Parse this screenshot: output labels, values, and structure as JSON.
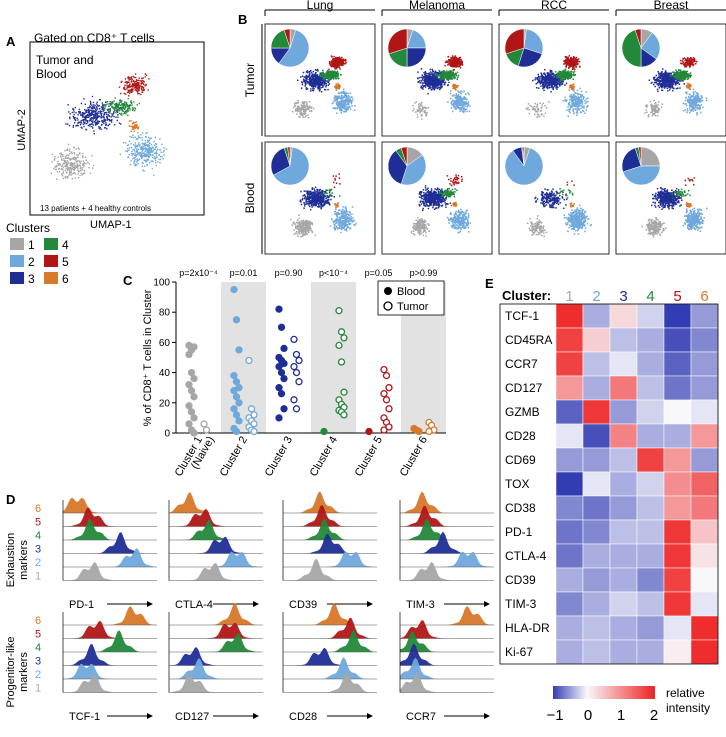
{
  "colors": {
    "c1": "#a6a6a6",
    "c2": "#6fa8dc",
    "c3": "#1f2e96",
    "c4": "#22883a",
    "c5": "#b01616",
    "c6": "#d7782a"
  },
  "panelA": {
    "letter": "A",
    "title": "Gated on CD8⁺ T cells",
    "subtitle_line1": "Tumor and",
    "subtitle_line2": "Blood",
    "footnote": "13 patients + 4 healthy controls",
    "xlabel": "UMAP-1",
    "ylabel": "UMAP-2",
    "clusters_title": "Clusters",
    "cluster_labels": [
      "1",
      "2",
      "3",
      "4",
      "5",
      "6"
    ]
  },
  "panelB": {
    "letter": "B",
    "columns": [
      "Lung",
      "Melanoma",
      "RCC",
      "Breast"
    ],
    "rows": [
      "Tumor",
      "Blood"
    ]
  },
  "chart_data": [
    {
      "type": "scatter",
      "panel": "C",
      "ylabel": "% of CD8⁺ T cells in Cluster",
      "ylim": [
        0,
        100
      ],
      "yticks": [
        0,
        20,
        40,
        60,
        80,
        100
      ],
      "categories": [
        "Cluster 1 (Naive)",
        "Cluster 2",
        "Cluster 3",
        "Cluster 4",
        "Cluster 5",
        "Cluster 6"
      ],
      "cat_line1": [
        "Cluster 1",
        "Cluster 2",
        "Cluster 3",
        "Cluster 4",
        "Cluster 5",
        "Cluster 6"
      ],
      "cat_line2": [
        "(Naive)",
        "",
        "",
        "",
        "",
        ""
      ],
      "pvalues": [
        "p=2x10⁻⁴",
        "p=0.01",
        "p=0.90",
        "p<10⁻⁴",
        "p=0.05",
        "p>0.99"
      ],
      "legend": [
        "Blood",
        "Tumor"
      ],
      "series": [
        {
          "name": "Blood",
          "filled": true,
          "values": [
            [
              58,
              55,
              57,
              52,
              40,
              36,
              32,
              28,
              24,
              18,
              14,
              10,
              6,
              2,
              0
            ],
            [
              95,
              75,
              55,
              38,
              34,
              30,
              28,
              24,
              20,
              16,
              12,
              8,
              3,
              1
            ],
            [
              82,
              70,
              56,
              50,
              48,
              46,
              44,
              40,
              36,
              30,
              26,
              16,
              10
            ],
            [
              1
            ],
            [
              1
            ],
            [
              3,
              2,
              1
            ]
          ]
        },
        {
          "name": "Tumor",
          "filled": false,
          "values": [
            [
              6,
              2
            ],
            [
              48,
              16,
              12,
              10,
              8,
              6,
              4,
              2,
              1
            ],
            [
              62,
              52,
              48,
              44,
              40,
              34,
              22,
              16
            ],
            [
              81,
              67,
              63,
              58,
              47,
              27,
              22,
              19,
              17,
              15,
              14,
              12
            ],
            [
              42,
              38,
              30,
              26,
              22,
              16,
              10,
              7,
              4,
              2
            ],
            [
              7,
              5,
              2,
              1
            ]
          ]
        }
      ]
    },
    {
      "type": "heatmap",
      "panel": "E",
      "xlabel": "Cluster:",
      "clusters": [
        "1",
        "2",
        "3",
        "4",
        "5",
        "6"
      ],
      "markers": [
        "TCF-1",
        "CD45RA",
        "CCR7",
        "CD127",
        "GZMB",
        "CD28",
        "CD69",
        "TOX",
        "CD38",
        "PD-1",
        "CTLA-4",
        "CD39",
        "TIM-3",
        "HLA-DR",
        "Ki-67"
      ],
      "values": [
        [
          1.9,
          -0.4,
          0.3,
          -0.2,
          -1.0,
          -0.5
        ],
        [
          1.7,
          0.4,
          -0.3,
          -0.4,
          -0.9,
          -0.6
        ],
        [
          1.7,
          -0.3,
          -0.1,
          -0.4,
          -0.8,
          -0.5
        ],
        [
          0.9,
          -0.4,
          1.2,
          -0.3,
          -0.7,
          -0.5
        ],
        [
          -0.8,
          1.8,
          -0.5,
          -0.2,
          0.0,
          -0.1
        ],
        [
          -0.1,
          -0.9,
          1.1,
          -0.4,
          -0.4,
          0.9
        ],
        [
          -0.5,
          -0.5,
          -0.3,
          1.7,
          0.9,
          -0.5
        ],
        [
          -1.1,
          -0.1,
          -0.4,
          -0.2,
          1.0,
          1.4
        ],
        [
          -0.6,
          -0.7,
          -0.5,
          -0.3,
          0.9,
          1.2
        ],
        [
          -0.7,
          -0.6,
          -0.3,
          -0.3,
          1.8,
          0.5
        ],
        [
          -0.7,
          -0.4,
          -0.4,
          -0.4,
          1.8,
          0.2
        ],
        [
          -0.4,
          -0.5,
          -0.4,
          -0.6,
          1.7,
          0.0
        ],
        [
          -0.6,
          -0.4,
          -0.2,
          -0.3,
          1.8,
          -0.1
        ],
        [
          -0.4,
          -0.3,
          -0.4,
          -0.5,
          -0.1,
          1.9
        ],
        [
          -0.4,
          -0.3,
          -0.4,
          -0.4,
          0.1,
          1.9
        ]
      ],
      "colorbar_ticks": [
        "−1",
        "0",
        "1",
        "2"
      ],
      "colorbar_label_line1": "relative",
      "colorbar_label_line2": "intensity"
    }
  ],
  "panelC": {
    "letter": "C"
  },
  "panelD": {
    "letter": "D",
    "group1": "Exhaustion markers",
    "group1_line1": "Exhaustion",
    "group1_line2": "markers",
    "group2": "Progenitor-like markers",
    "group2_line1": "Progenitor-like",
    "group2_line2": "markers",
    "row_labels": [
      "6",
      "5",
      "4",
      "3",
      "2",
      "1"
    ],
    "markers_top": [
      "PD-1",
      "CTLA-4",
      "CD39",
      "TIM-3"
    ],
    "markers_bottom": [
      "TCF-1",
      "CD127",
      "CD28",
      "CCR7"
    ],
    "peaks_top": [
      [
        0.3,
        0.75,
        0.6,
        0.3,
        0.3,
        0.15
      ],
      [
        0.45,
        0.72,
        0.55,
        0.4,
        0.35,
        0.2
      ],
      [
        0.35,
        0.72,
        0.5,
        0.45,
        0.42,
        0.4
      ],
      [
        0.3,
        0.72,
        0.45,
        0.3,
        0.28,
        0.25
      ]
    ],
    "peaks_bottom": [
      [
        0.3,
        0.25,
        0.3,
        0.6,
        0.35,
        0.75
      ],
      [
        0.25,
        0.3,
        0.25,
        0.7,
        0.65,
        0.7
      ],
      [
        0.7,
        0.65,
        0.4,
        0.75,
        0.7,
        0.55
      ],
      [
        0.15,
        0.15,
        0.15,
        0.15,
        0.2,
        0.75
      ]
    ]
  },
  "panelE": {
    "letter": "E"
  }
}
